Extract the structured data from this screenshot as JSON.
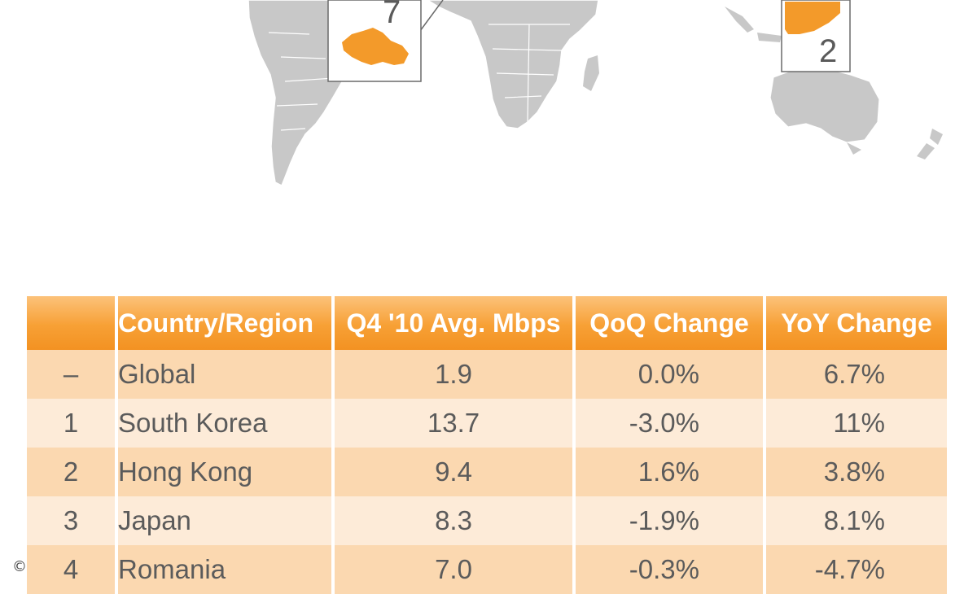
{
  "map": {
    "callouts": [
      {
        "region": "Czech Republic",
        "rank_label": "7"
      },
      {
        "region": "Hong Kong",
        "rank_label": "2"
      }
    ],
    "colors": {
      "land": "#c8c8c8",
      "highlight": "#f39a2a",
      "border": "#ffffff",
      "callout_border": "#6a6a6a"
    }
  },
  "table": {
    "headers": [
      "",
      "Country/Region",
      "Q4 '10 Avg. Mbps",
      "QoQ Change",
      "YoY Change"
    ],
    "rows": [
      {
        "rank": "–",
        "country": "Global",
        "mbps": "1.9",
        "qoq": "0.0%",
        "yoy": "6.7%"
      },
      {
        "rank": "1",
        "country": "South Korea",
        "mbps": "13.7",
        "qoq": "-3.0%",
        "yoy": "11%"
      },
      {
        "rank": "2",
        "country": "Hong Kong",
        "mbps": "9.4",
        "qoq": "1.6%",
        "yoy": "3.8%"
      },
      {
        "rank": "3",
        "country": "Japan",
        "mbps": "8.3",
        "qoq": "-1.9%",
        "yoy": "8.1%"
      },
      {
        "rank": "4",
        "country": "Romania",
        "mbps": "7.0",
        "qoq": "-0.3%",
        "yoy": "-4.7%"
      }
    ],
    "colors": {
      "header": "#f7a035",
      "row_odd": "#fbd8b0",
      "row_even": "#fdebd8",
      "text": "#5b5b5b"
    }
  },
  "footer": {
    "copyright_symbol": "©"
  }
}
